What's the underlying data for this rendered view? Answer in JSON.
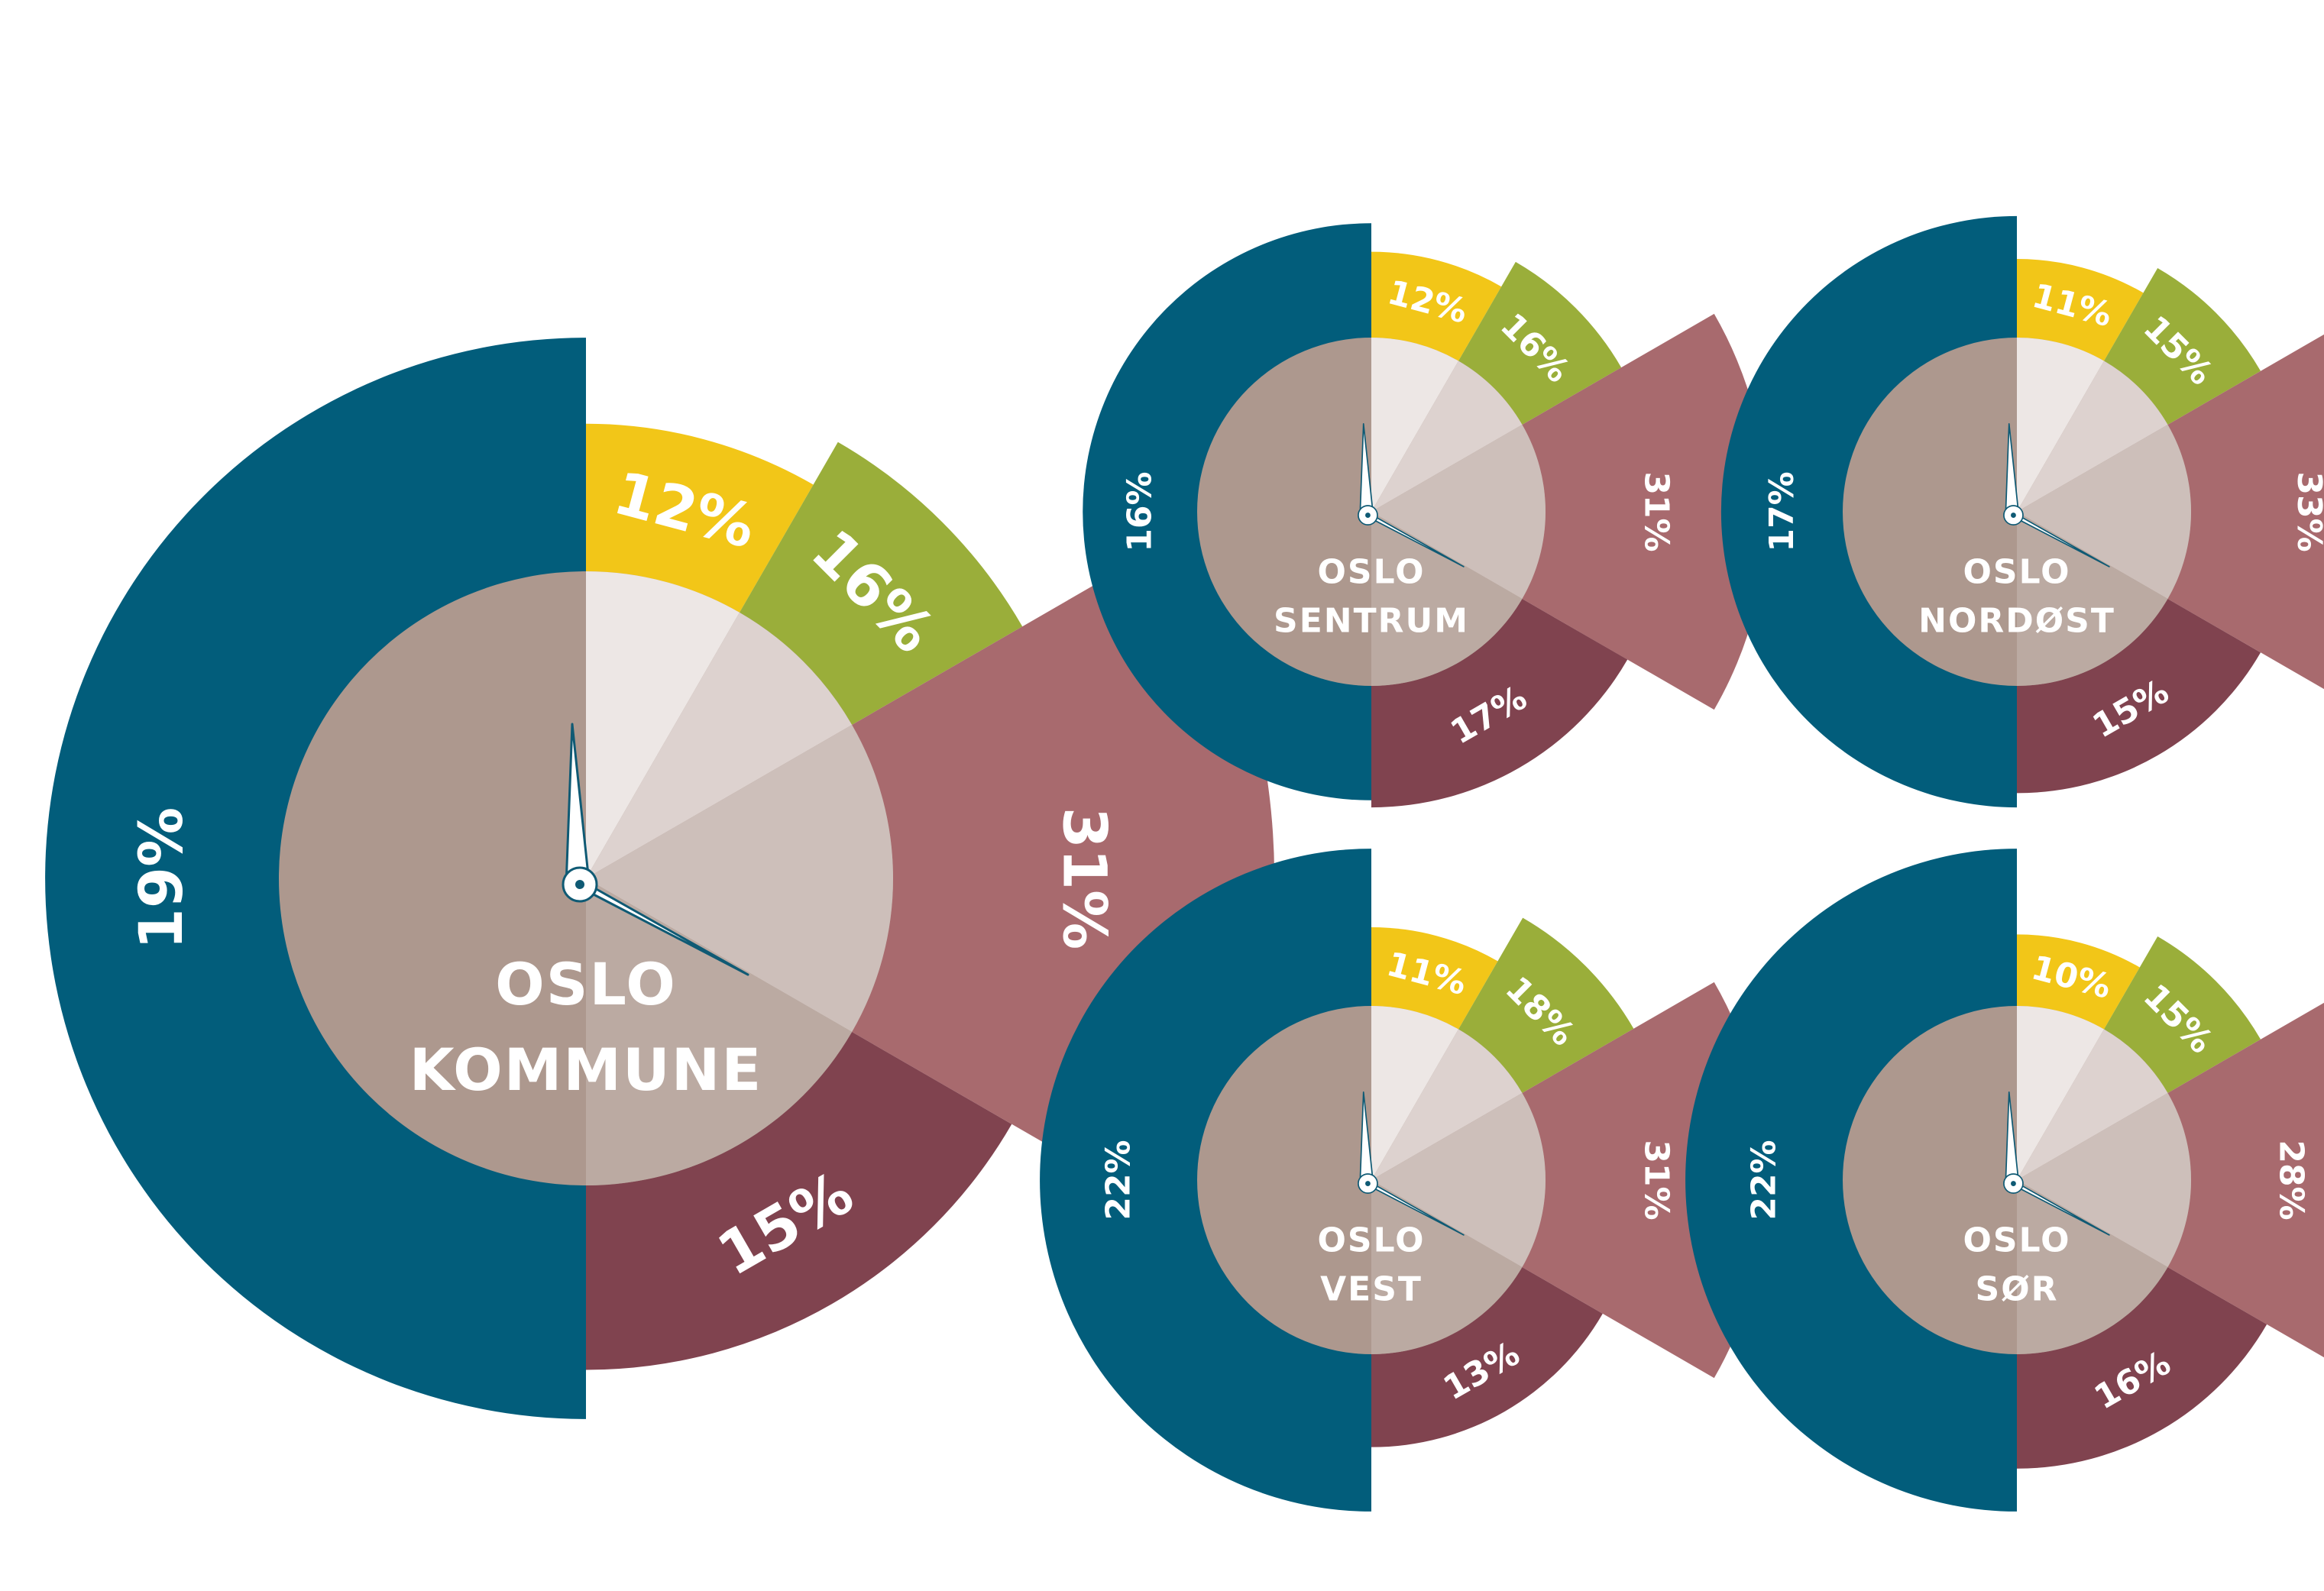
{
  "colors": {
    "yellow": "#f2c618",
    "green": "#9aae3a",
    "rose": "#a86a6e",
    "wine": "#80434f",
    "teal": "#025d7b",
    "center": "#ad988e",
    "wedge_light": "#ede7e5",
    "wedge_mid": "#ddd2cf",
    "wedge_dark": "#cdbfba",
    "wedge_bottom": "#bbaaa2",
    "hand_fill": "#ffffff",
    "hand_stroke": "#0f5a74"
  },
  "chart_data": [
    {
      "type": "pie",
      "title_lines": [
        "OSLO",
        "KOMMUNE"
      ],
      "segments": [
        {
          "color": "yellow",
          "value": 12,
          "label": "12%"
        },
        {
          "color": "green",
          "value": 16,
          "label": "16%"
        },
        {
          "color": "rose",
          "value": 31,
          "label": "31%"
        },
        {
          "color": "wine",
          "value": 15,
          "label": "15%"
        },
        {
          "color": "teal",
          "value": 19,
          "label": "19%"
        }
      ]
    },
    {
      "type": "pie",
      "title_lines": [
        "OSLO",
        "SENTRUM"
      ],
      "segments": [
        {
          "color": "yellow",
          "value": 12,
          "label": "12%"
        },
        {
          "color": "green",
          "value": 16,
          "label": "16%"
        },
        {
          "color": "rose",
          "value": 31,
          "label": "31%"
        },
        {
          "color": "wine",
          "value": 17,
          "label": "17%"
        },
        {
          "color": "teal",
          "value": 16,
          "label": "16%"
        }
      ]
    },
    {
      "type": "pie",
      "title_lines": [
        "OSLO",
        "NORDØST"
      ],
      "segments": [
        {
          "color": "yellow",
          "value": 11,
          "label": "11%"
        },
        {
          "color": "green",
          "value": 15,
          "label": "15%"
        },
        {
          "color": "rose",
          "value": 33,
          "label": "33%"
        },
        {
          "color": "wine",
          "value": 15,
          "label": "15%"
        },
        {
          "color": "teal",
          "value": 17,
          "label": "17%"
        }
      ]
    },
    {
      "type": "pie",
      "title_lines": [
        "OSLO",
        "VEST"
      ],
      "segments": [
        {
          "color": "yellow",
          "value": 11,
          "label": "11%"
        },
        {
          "color": "green",
          "value": 18,
          "label": "18%"
        },
        {
          "color": "rose",
          "value": 31,
          "label": "31%"
        },
        {
          "color": "wine",
          "value": 13,
          "label": "13%"
        },
        {
          "color": "teal",
          "value": 22,
          "label": "22%"
        }
      ]
    },
    {
      "type": "pie",
      "title_lines": [
        "OSLO",
        "SØR"
      ],
      "segments": [
        {
          "color": "yellow",
          "value": 10,
          "label": "10%"
        },
        {
          "color": "green",
          "value": 15,
          "label": "15%"
        },
        {
          "color": "rose",
          "value": 28,
          "label": "28%"
        },
        {
          "color": "wine",
          "value": 16,
          "label": "16%"
        },
        {
          "color": "teal",
          "value": 22,
          "label": "22%"
        }
      ]
    }
  ]
}
